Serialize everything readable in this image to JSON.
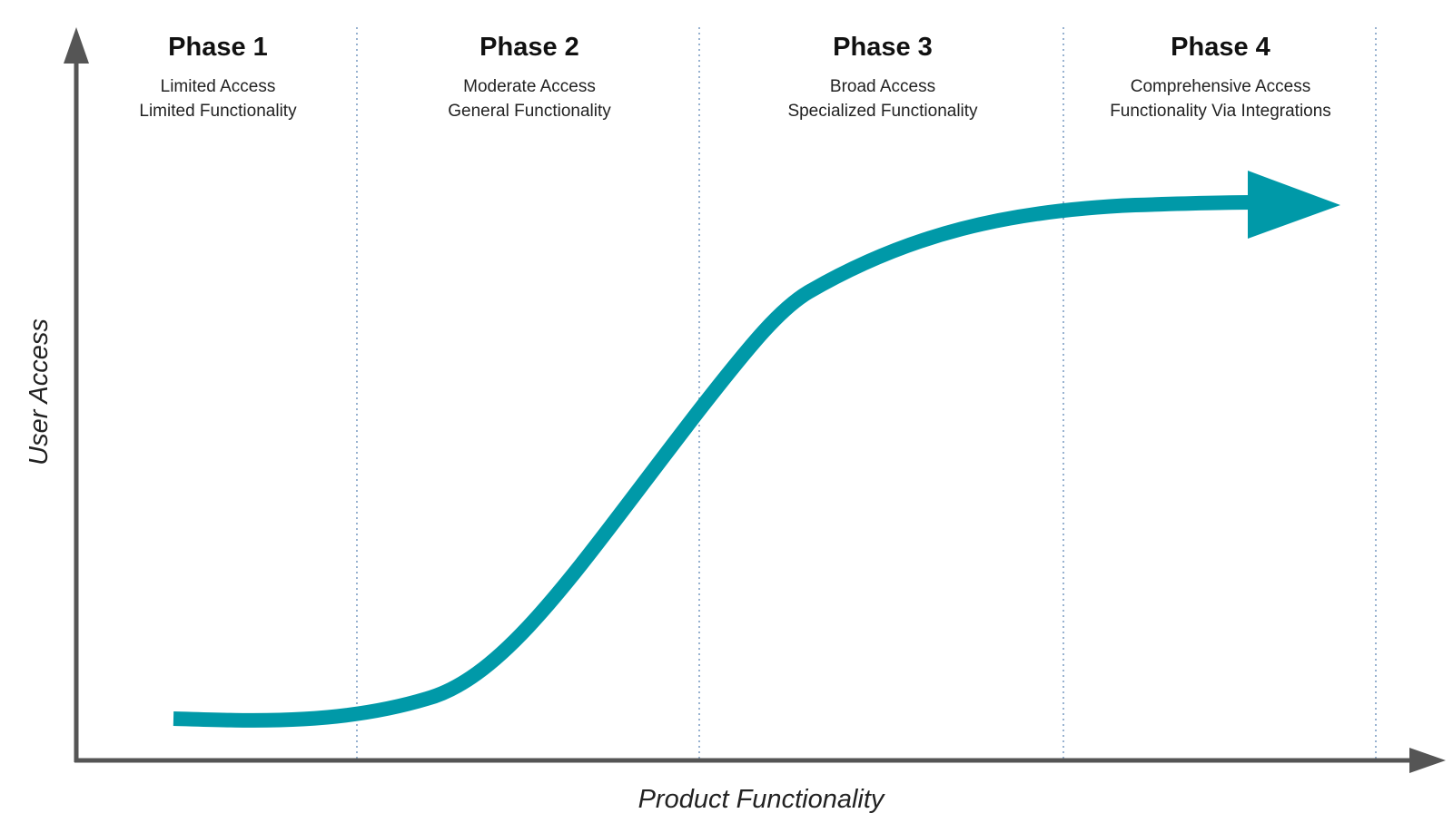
{
  "axes": {
    "x_label": "Product Functionality",
    "y_label": "User Access"
  },
  "phases": [
    {
      "title": "Phase 1",
      "lines": [
        "Limited Access",
        "Limited Functionality"
      ]
    },
    {
      "title": "Phase 2",
      "lines": [
        "Moderate Access",
        "General Functionality"
      ]
    },
    {
      "title": "Phase 3",
      "lines": [
        "Broad Access",
        "Specialized Functionality"
      ]
    },
    {
      "title": "Phase 4",
      "lines": [
        "Comprehensive Access",
        "Functionality Via Integrations"
      ]
    }
  ],
  "colors": {
    "curve": "#0099a8",
    "axis": "#555555",
    "divider": "#7f9fc4"
  }
}
